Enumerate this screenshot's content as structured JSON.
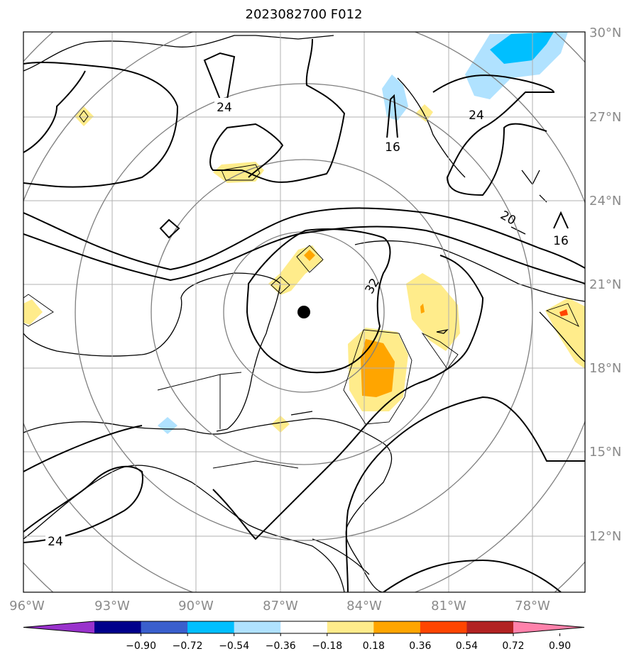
{
  "title": "2023082700 F012",
  "lat_labels": [
    "30°N",
    "27°N",
    "24°N",
    "21°N",
    "18°N",
    "15°N",
    "12°N"
  ],
  "lon_labels": [
    "96°W",
    "93°W",
    "90°W",
    "87°W",
    "84°W",
    "81°W",
    "78°W"
  ],
  "contour_labels": [
    "24",
    "16",
    "24",
    "20",
    "16",
    "32",
    "24"
  ],
  "colorbar": {
    "tick_labels": [
      "−0.90",
      "−0.72",
      "−0.54",
      "−0.36",
      "−0.18",
      "0.18",
      "0.36",
      "0.54",
      "0.72",
      "0.90"
    ],
    "colors": [
      "#9932cc",
      "#00008b",
      "#3a5fcd",
      "#00bfff",
      "#b0e2ff",
      "#ffffff",
      "#ffec8b",
      "#ffa500",
      "#ff4500",
      "#b22222",
      "#ff82ab"
    ]
  },
  "storm_center": {
    "lat": 20.0,
    "lon": -86.2
  }
}
